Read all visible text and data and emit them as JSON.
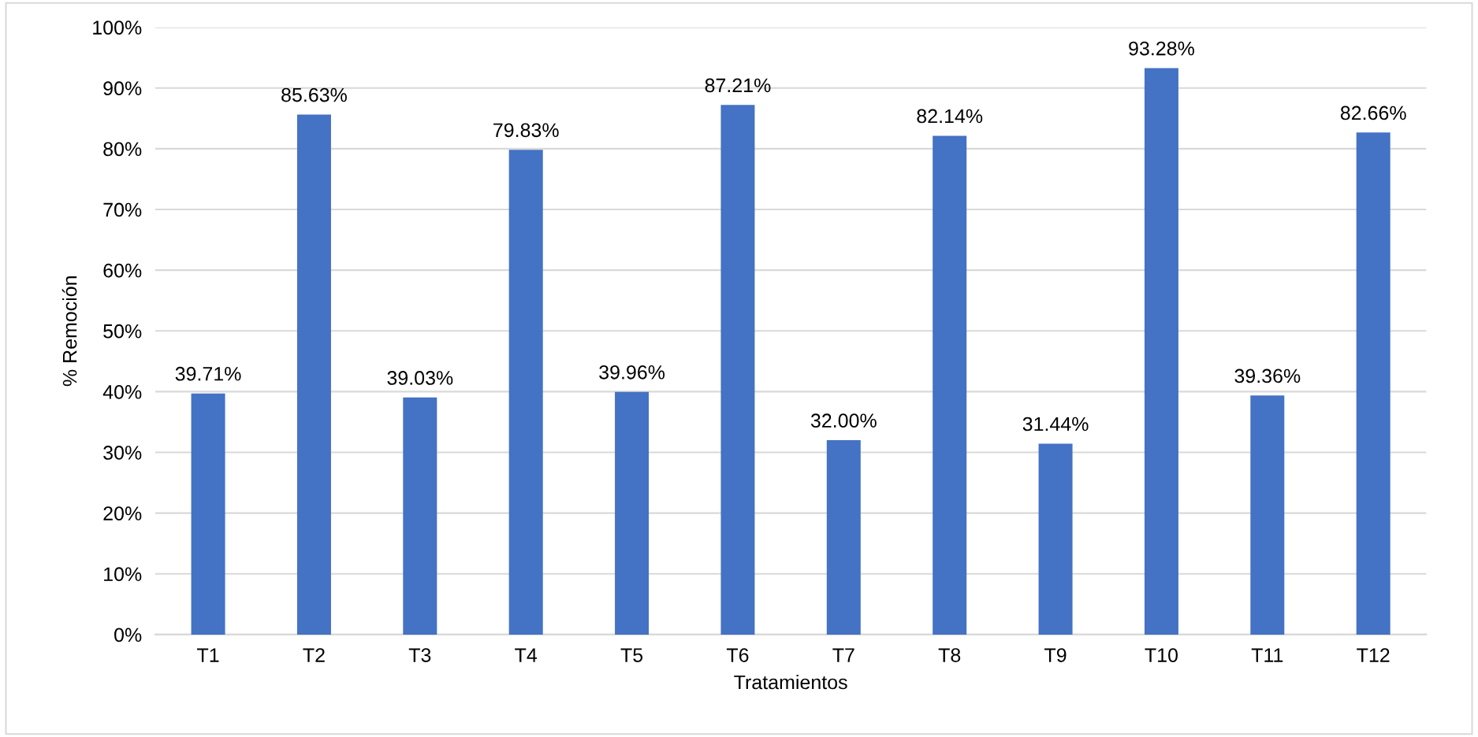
{
  "chart_data": {
    "type": "bar",
    "xlabel": "Tratamientos",
    "ylabel": "% Remoción",
    "categories": [
      "T1",
      "T2",
      "T3",
      "T4",
      "T5",
      "T6",
      "T7",
      "T8",
      "T9",
      "T10",
      "T11",
      "T12"
    ],
    "values": [
      39.71,
      85.63,
      39.03,
      79.83,
      39.96,
      87.21,
      32.0,
      82.14,
      31.44,
      93.28,
      39.36,
      82.66
    ],
    "value_labels": [
      "39.71%",
      "85.63%",
      "39.03%",
      "79.83%",
      "39.96%",
      "87.21%",
      "32.00%",
      "82.14%",
      "31.44%",
      "93.28%",
      "39.36%",
      "82.66%"
    ],
    "color": "#4472c4",
    "ylim": [
      0,
      100
    ],
    "yticks": [
      {
        "value": 0,
        "label": "0%"
      },
      {
        "value": 10,
        "label": "10%"
      },
      {
        "value": 20,
        "label": "20%"
      },
      {
        "value": 30,
        "label": "30%"
      },
      {
        "value": 40,
        "label": "40%"
      },
      {
        "value": 50,
        "label": "50%"
      },
      {
        "value": 60,
        "label": "60%"
      },
      {
        "value": 70,
        "label": "70%"
      },
      {
        "value": 80,
        "label": "80%"
      },
      {
        "value": 90,
        "label": "90%"
      },
      {
        "value": 100,
        "label": "100%"
      }
    ],
    "grid": "y",
    "legend": false
  }
}
